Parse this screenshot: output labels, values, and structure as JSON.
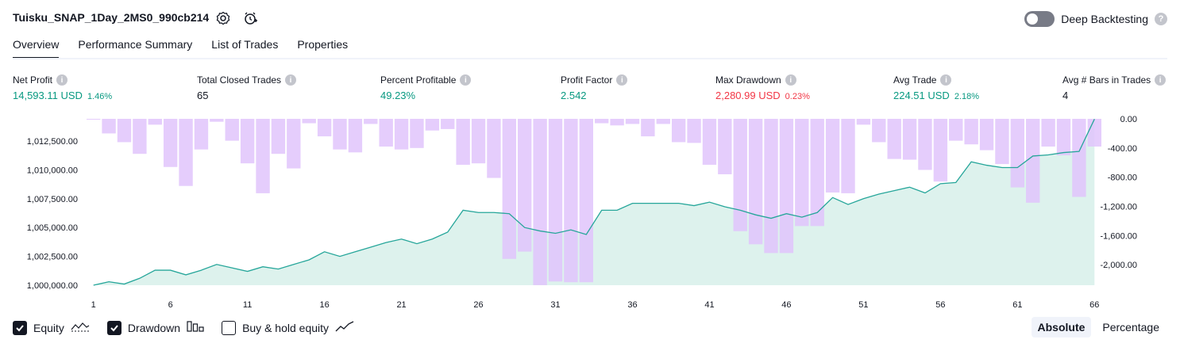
{
  "header": {
    "title": "Tuisku_SNAP_1Day_2MS0_990cb214",
    "deep_backtesting_label": "Deep Backtesting",
    "help_glyph": "?"
  },
  "tabs": [
    {
      "label": "Overview",
      "active": true
    },
    {
      "label": "Performance Summary",
      "active": false
    },
    {
      "label": "List of Trades",
      "active": false
    },
    {
      "label": "Properties",
      "active": false
    }
  ],
  "metrics": {
    "info_glyph": "i",
    "net_profit": {
      "label": "Net Profit",
      "value": "14,593.11 USD",
      "pct": "1.46%"
    },
    "total_closed_trades": {
      "label": "Total Closed Trades",
      "value": "65"
    },
    "percent_profitable": {
      "label": "Percent Profitable",
      "value": "49.23%"
    },
    "profit_factor": {
      "label": "Profit Factor",
      "value": "2.542"
    },
    "max_drawdown": {
      "label": "Max Drawdown",
      "value": "2,280.99 USD",
      "pct": "0.23%"
    },
    "avg_trade": {
      "label": "Avg Trade",
      "value": "224.51 USD",
      "pct": "2.18%"
    },
    "avg_bars": {
      "label": "Avg # Bars in Trades",
      "value": "4"
    }
  },
  "colors": {
    "equity_line": "#26a69a",
    "equity_fill": "#d4efe9",
    "drawdown_bar": "#e0c4fb",
    "overlap_bar": "#b9b4ea",
    "positive": "#089981",
    "negative": "#f23645"
  },
  "chart_data": {
    "type": "bar+area",
    "x": [
      1,
      2,
      3,
      4,
      5,
      6,
      7,
      8,
      9,
      10,
      11,
      12,
      13,
      14,
      15,
      16,
      17,
      18,
      19,
      20,
      21,
      22,
      23,
      24,
      25,
      26,
      27,
      28,
      29,
      30,
      31,
      32,
      33,
      34,
      35,
      36,
      37,
      38,
      39,
      40,
      41,
      42,
      43,
      44,
      45,
      46,
      47,
      48,
      49,
      50,
      51,
      52,
      53,
      54,
      55,
      56,
      57,
      58,
      59,
      60,
      61,
      62,
      63,
      64,
      65,
      66
    ],
    "x_tick_labels": [
      "1",
      "6",
      "11",
      "16",
      "21",
      "26",
      "31",
      "36",
      "41",
      "46",
      "51",
      "56",
      "61",
      "66"
    ],
    "left_axis_ticks": [
      "1,012,500.00",
      "1,010,000.00",
      "1,007,500.00",
      "1,005,000.00",
      "1,002,500.00",
      "1,000,000.00"
    ],
    "right_axis_ticks": [
      "0.00",
      "-400.00",
      "-800.00",
      "-1,200.00",
      "-1,600.00",
      "-2,000.00"
    ],
    "left_ylim": [
      999000,
      1014500
    ],
    "right_ylim": [
      -2280.99,
      0
    ],
    "series": [
      {
        "name": "Equity",
        "axis": "left",
        "values": [
          1000000,
          1000300,
          1000100,
          1000600,
          1001300,
          1001300,
          1000900,
          1001300,
          1001800,
          1001500,
          1001200,
          1001600,
          1001400,
          1001800,
          1002200,
          1002900,
          1002500,
          1002900,
          1003300,
          1003700,
          1004000,
          1003600,
          1004000,
          1004600,
          1006500,
          1006300,
          1006300,
          1006200,
          1005000,
          1004700,
          1004500,
          1004800,
          1004400,
          1006500,
          1006500,
          1007100,
          1007100,
          1007100,
          1007100,
          1006900,
          1007200,
          1006800,
          1006500,
          1006100,
          1005800,
          1006200,
          1005900,
          1006300,
          1007600,
          1007000,
          1007500,
          1007900,
          1008200,
          1008500,
          1008000,
          1008800,
          1008900,
          1010700,
          1010400,
          1010200,
          1010200,
          1011200,
          1011300,
          1011500,
          1011600,
          1014400
        ]
      },
      {
        "name": "Drawdown",
        "axis": "right",
        "values": [
          0,
          -200,
          -320,
          -480,
          -80,
          -660,
          -920,
          -420,
          -40,
          -300,
          -610,
          -1020,
          -480,
          -680,
          -60,
          -240,
          -420,
          -460,
          -70,
          -380,
          -420,
          -400,
          -160,
          -140,
          -630,
          -610,
          -810,
          -1920,
          -1820,
          -2280,
          -2230,
          -2240,
          -2240,
          -60,
          -90,
          -70,
          -240,
          -70,
          -320,
          -330,
          -630,
          -760,
          -1540,
          -1720,
          -1840,
          -1840,
          -1470,
          -1470,
          -1010,
          -1020,
          -80,
          -320,
          -550,
          -560,
          -700,
          -860,
          -300,
          -350,
          -430,
          -620,
          -940,
          -1150,
          -380,
          -500,
          -1070,
          -380
        ]
      }
    ]
  },
  "legend": {
    "equity": {
      "label": "Equity",
      "checked": true
    },
    "drawdown": {
      "label": "Drawdown",
      "checked": true
    },
    "buyhold": {
      "label": "Buy & hold equity",
      "checked": false
    }
  },
  "modes": [
    {
      "label": "Absolute",
      "active": true
    },
    {
      "label": "Percentage",
      "active": false
    }
  ]
}
